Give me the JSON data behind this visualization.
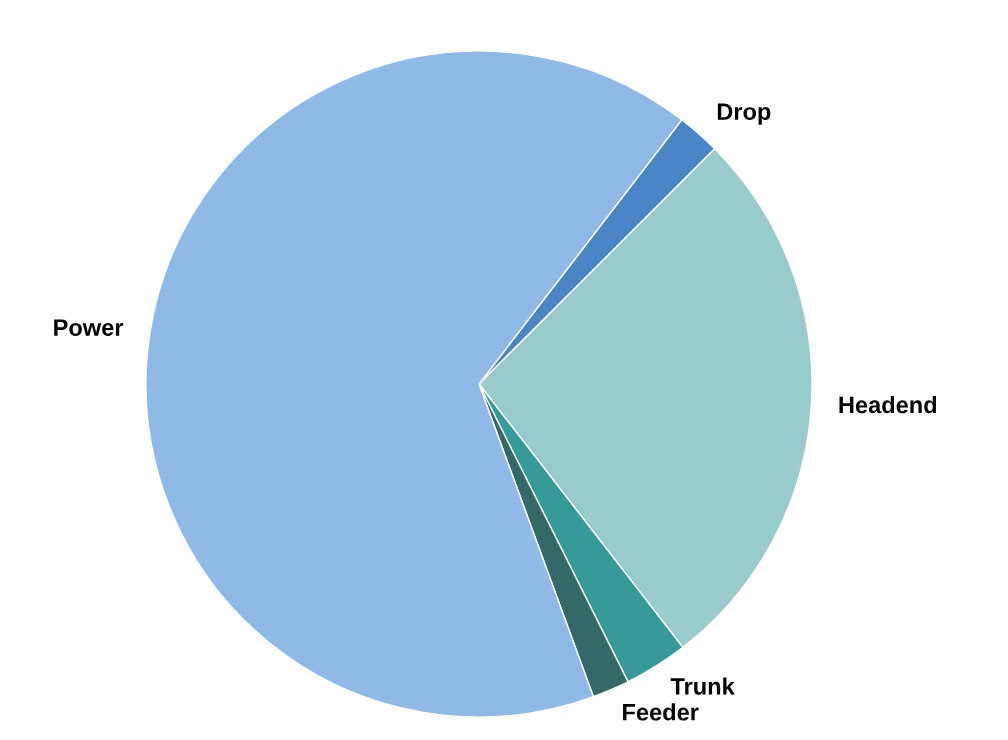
{
  "chart_data": {
    "type": "pie",
    "categories": [
      "Drop",
      "Headend",
      "Trunk",
      "Feeder",
      "Power"
    ],
    "values": [
      2.1,
      27.0,
      3.1,
      1.8,
      66.0
    ],
    "colors": [
      "#4a86c5",
      "#9acbcc",
      "#359a98",
      "#336966",
      "#8fb9e6"
    ]
  }
}
